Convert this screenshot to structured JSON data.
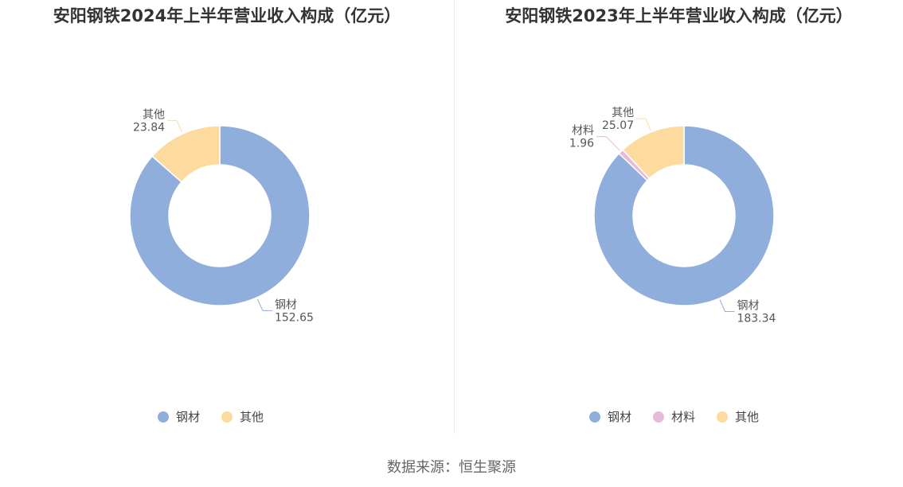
{
  "colors": {
    "钢材": "#8FAEDB",
    "材料": "#E7B9DB",
    "其他": "#FDDA9D"
  },
  "chart_data": [
    {
      "type": "pie",
      "donut": true,
      "title": "安阳钢铁2024年上半年营业收入构成（亿元）",
      "categories": [
        "钢材",
        "其他"
      ],
      "values": [
        152.65,
        23.84
      ],
      "legend": [
        "钢材",
        "其他"
      ],
      "legend_position": "bottom"
    },
    {
      "type": "pie",
      "donut": true,
      "title": "安阳钢铁2023年上半年营业收入构成（亿元）",
      "categories": [
        "钢材",
        "材料",
        "其他"
      ],
      "values": [
        183.34,
        1.96,
        25.07
      ],
      "legend": [
        "钢材",
        "材料",
        "其他"
      ],
      "legend_position": "bottom"
    }
  ],
  "footer": {
    "source": "数据来源：恒生聚源"
  }
}
